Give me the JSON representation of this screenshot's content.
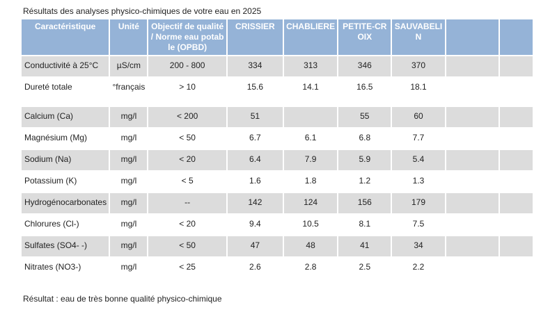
{
  "caption": "Résultats des analyses physico-chimiques de votre eau en 2025",
  "table": {
    "header": [
      "Caractéristique",
      "Unité",
      "Objectif de qualité / Norme eau potable (OPBD)",
      "CRISSIER",
      "CHABLIERE",
      "PETITE-CROIX",
      "SAUVABELIN"
    ],
    "rows": [
      [
        "Conductivité à 25°C",
        "µS/cm",
        "200 - 800",
        "334",
        "313",
        "346",
        "370"
      ],
      [
        "Dureté totale",
        "°français",
        "> 10",
        "15.6",
        "14.1",
        "16.5",
        "18.1"
      ],
      [
        "Calcium (Ca)",
        "mg/l",
        "< 200",
        "51",
        null,
        "55",
        "60"
      ],
      [
        "Magnésium (Mg)",
        "mg/l",
        "< 50",
        "6.7",
        "6.1",
        "6.8",
        "7.7"
      ],
      [
        "Sodium (Na)",
        "mg/l",
        "< 20",
        "6.4",
        "7.9",
        "5.9",
        "5.4"
      ],
      [
        "Potassium (K)",
        "mg/l",
        "< 5",
        "1.6",
        "1.8",
        "1.2",
        "1.3"
      ],
      [
        "Hydrogénocarbonates",
        "mg/l",
        "--",
        "142",
        "124",
        "156",
        "179"
      ],
      [
        "Chlorures (Cl-)",
        "mg/l",
        "< 20",
        "9.4",
        "10.5",
        "8.1",
        "7.5"
      ],
      [
        "Sulfates (SO4- -)",
        "mg/l",
        "< 50",
        "47",
        "48",
        "41",
        "34"
      ],
      [
        "Nitrates (NO3-)",
        "mg/l",
        "< 25",
        "2.6",
        "2.8",
        "2.5",
        "2.2"
      ]
    ]
  },
  "result": "Résultat : eau de très bonne qualité physico-chimique"
}
